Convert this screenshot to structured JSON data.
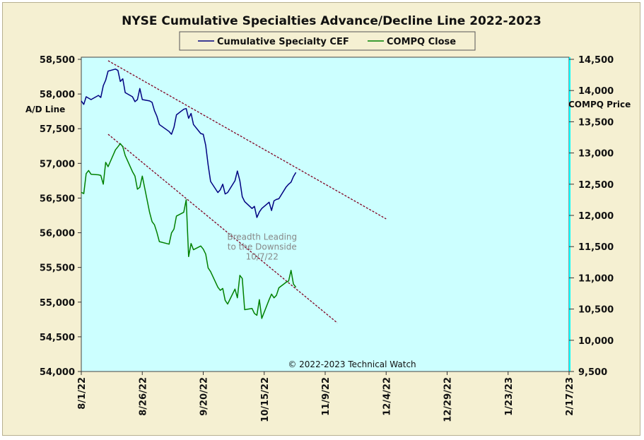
{
  "chart_data": {
    "type": "line",
    "title": "NYSE Cumulative  Specialties  Advance/Decline  Line  2022-2023",
    "legend": {
      "placement": "top-center",
      "entries": [
        "Cumulative Specialty CEF",
        "COMPQ Close"
      ]
    },
    "left_axis": {
      "label": "A/D Line",
      "ylim": [
        54000,
        58500
      ],
      "ticks": [
        "58,500",
        "58,000",
        "57,500",
        "57,000",
        "56,500",
        "56,000",
        "55,500",
        "55,000",
        "54,500",
        "54,000"
      ]
    },
    "right_axis": {
      "label": "COMPQ Price",
      "ylim": [
        9500,
        14500
      ],
      "ticks": [
        "14,500",
        "14,000",
        "13,500",
        "13,000",
        "12,500",
        "12,000",
        "11,500",
        "11,000",
        "10,500",
        "10,000",
        "9,500"
      ]
    },
    "x_axis": {
      "xlim": [
        "2022-08-01",
        "2023-02-17"
      ],
      "ticks": [
        "8/1/22",
        "8/26/22",
        "9/20/22",
        "10/15/22",
        "11/9/22",
        "12/4/22",
        "12/29/22",
        "1/23/23",
        "2/17/23"
      ]
    },
    "grid": false,
    "colors": {
      "background": "#f5f0d2",
      "plot": "#ccffff",
      "side_panel": "#00ffff",
      "series1": "#000080",
      "series2": "#008000",
      "trend": "#800020"
    },
    "series": [
      {
        "name": "Cumulative Specialty CEF",
        "axis": "left",
        "color": "#000080",
        "x": [
          "2022-08-01",
          "2022-08-02",
          "2022-08-03",
          "2022-08-04",
          "2022-08-05",
          "2022-08-08",
          "2022-08-09",
          "2022-08-10",
          "2022-08-11",
          "2022-08-12",
          "2022-08-15",
          "2022-08-16",
          "2022-08-17",
          "2022-08-18",
          "2022-08-19",
          "2022-08-22",
          "2022-08-23",
          "2022-08-24",
          "2022-08-25",
          "2022-08-26",
          "2022-08-29",
          "2022-08-30",
          "2022-08-31",
          "2022-09-01",
          "2022-09-02",
          "2022-09-06",
          "2022-09-07",
          "2022-09-08",
          "2022-09-09",
          "2022-09-12",
          "2022-09-13",
          "2022-09-14",
          "2022-09-15",
          "2022-09-16",
          "2022-09-19",
          "2022-09-20",
          "2022-09-21",
          "2022-09-22",
          "2022-09-23",
          "2022-09-26",
          "2022-09-27",
          "2022-09-28",
          "2022-09-29",
          "2022-09-30",
          "2022-10-03",
          "2022-10-04",
          "2022-10-05",
          "2022-10-06",
          "2022-10-07",
          "2022-10-10",
          "2022-10-11",
          "2022-10-12",
          "2022-10-13",
          "2022-10-14",
          "2022-10-17",
          "2022-10-18",
          "2022-10-19",
          "2022-10-20",
          "2022-10-21",
          "2022-10-24",
          "2022-10-25",
          "2022-10-26",
          "2022-10-27",
          "2022-10-28"
        ],
        "values": [
          57900,
          57850,
          57960,
          57940,
          57920,
          57980,
          57950,
          58120,
          58200,
          58330,
          58360,
          58340,
          58180,
          58220,
          58020,
          57960,
          57890,
          57920,
          58080,
          57920,
          57900,
          57880,
          57760,
          57680,
          57560,
          57460,
          57420,
          57520,
          57700,
          57780,
          57790,
          57650,
          57720,
          57560,
          57430,
          57420,
          57260,
          56980,
          56740,
          56580,
          56620,
          56700,
          56560,
          56580,
          56750,
          56890,
          56750,
          56520,
          56450,
          56350,
          56380,
          56220,
          56300,
          56350,
          56440,
          56320,
          56460,
          56480,
          56490,
          56660,
          56700,
          56730,
          56810,
          56870
        ]
      },
      {
        "name": "COMPQ Close",
        "axis": "right",
        "color": "#008000",
        "x": [
          "2022-08-01",
          "2022-08-02",
          "2022-08-03",
          "2022-08-04",
          "2022-08-05",
          "2022-08-08",
          "2022-08-09",
          "2022-08-10",
          "2022-08-11",
          "2022-08-12",
          "2022-08-15",
          "2022-08-16",
          "2022-08-17",
          "2022-08-18",
          "2022-08-19",
          "2022-08-22",
          "2022-08-23",
          "2022-08-24",
          "2022-08-25",
          "2022-08-26",
          "2022-08-29",
          "2022-08-30",
          "2022-08-31",
          "2022-09-01",
          "2022-09-02",
          "2022-09-06",
          "2022-09-07",
          "2022-09-08",
          "2022-09-09",
          "2022-09-12",
          "2022-09-13",
          "2022-09-14",
          "2022-09-15",
          "2022-09-16",
          "2022-09-19",
          "2022-09-20",
          "2022-09-21",
          "2022-09-22",
          "2022-09-23",
          "2022-09-26",
          "2022-09-27",
          "2022-09-28",
          "2022-09-29",
          "2022-09-30",
          "2022-10-03",
          "2022-10-04",
          "2022-10-05",
          "2022-10-06",
          "2022-10-07",
          "2022-10-10",
          "2022-10-11",
          "2022-10-12",
          "2022-10-13",
          "2022-10-14",
          "2022-10-17",
          "2022-10-18",
          "2022-10-19",
          "2022-10-20",
          "2022-10-21",
          "2022-10-24",
          "2022-10-25",
          "2022-10-26",
          "2022-10-27",
          "2022-10-28"
        ],
        "values": [
          12370,
          12350,
          12670,
          12720,
          12660,
          12650,
          12640,
          12500,
          12850,
          12780,
          13050,
          13100,
          13150,
          13100,
          12960,
          12700,
          12630,
          12420,
          12450,
          12630,
          12050,
          11900,
          11850,
          11730,
          11580,
          11540,
          11720,
          11780,
          11990,
          12050,
          12250,
          11340,
          11550,
          11450,
          11510,
          11460,
          11380,
          11160,
          11100,
          10850,
          10800,
          10830,
          10640,
          10580,
          10820,
          10680,
          11040,
          10990,
          10490,
          10510,
          10430,
          10400,
          10650,
          10350,
          10650,
          10740,
          10680,
          10720,
          10840,
          10930,
          10950,
          11120,
          10900,
          10850
        ]
      }
    ],
    "trendlines": [
      {
        "axis": "left",
        "from": [
          "2022-08-12",
          58480
        ],
        "to": [
          "2022-12-04",
          56200
        ]
      },
      {
        "axis": "left",
        "from": [
          "2022-08-12",
          57420
        ],
        "to": [
          "2022-11-14",
          54700
        ]
      }
    ],
    "annotations": [
      {
        "lines": [
          "Breadth Leading",
          "to the Downside",
          "10/7/22"
        ],
        "at": [
          "2022-10-15",
          55900
        ]
      }
    ],
    "copyright": "© 2022-2023  Technical Watch"
  }
}
